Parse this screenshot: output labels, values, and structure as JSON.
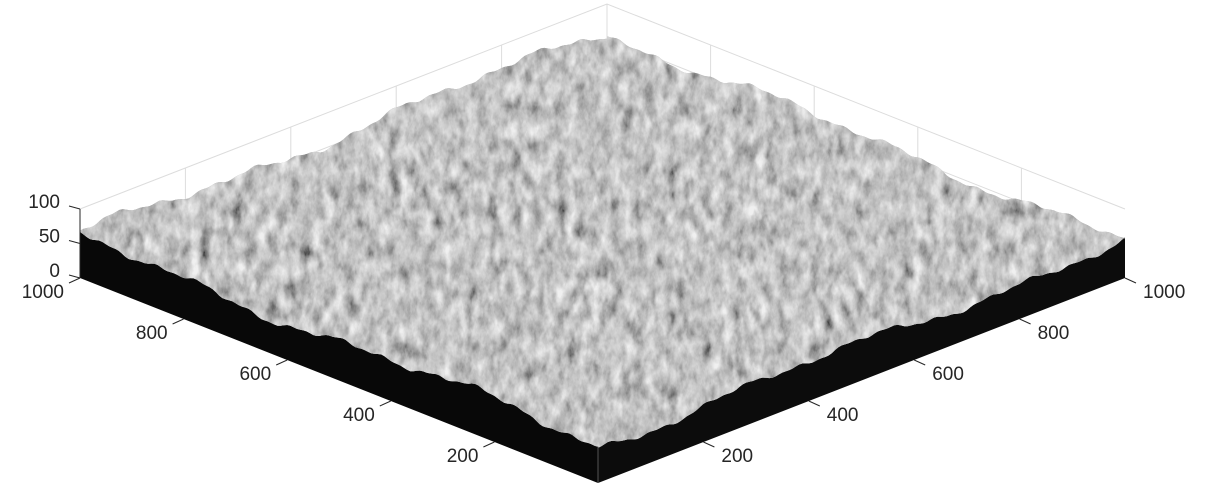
{
  "chart_data": {
    "type": "surface",
    "colormap": "gray",
    "grid": true,
    "xlim": [
      0,
      1000
    ],
    "ylim": [
      0,
      1000
    ],
    "zlim": [
      0,
      100
    ],
    "xticks": [
      200,
      400,
      600,
      800,
      1000
    ],
    "yticks": [
      200,
      400,
      600,
      800,
      1000
    ],
    "zticks": [
      0,
      50,
      100
    ]
  }
}
